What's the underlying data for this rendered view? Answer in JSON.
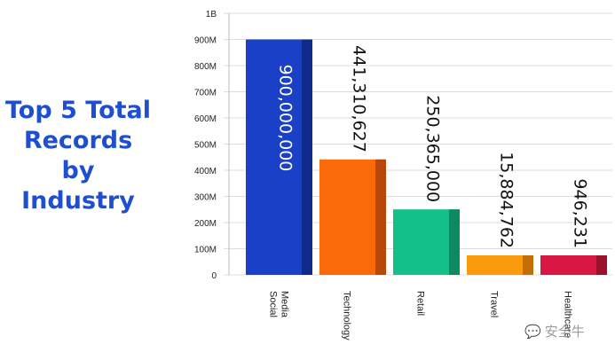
{
  "title_lines": [
    "Top 5 Total",
    "Records",
    "by Industry"
  ],
  "watermark": {
    "icon": "wechat-icon",
    "text": "安全牛"
  },
  "chart_data": {
    "type": "bar",
    "title": "Top 5 Total Records by Industry",
    "categories": [
      "Social Media",
      "Technology",
      "Retail",
      "Travel",
      "Healthcare"
    ],
    "category_lines": [
      [
        "Social",
        "Media"
      ],
      [
        "Technology"
      ],
      [
        "Retail"
      ],
      [
        "Travel"
      ],
      [
        "Healthcare"
      ]
    ],
    "values": [
      900000000,
      441310627,
      250365000,
      15884762,
      946231
    ],
    "value_labels": [
      "900,000,000",
      "441,310,627",
      "250,365,000",
      "15,884,762",
      "946,231"
    ],
    "colors": [
      "#1a40c8",
      "#fa6a0a",
      "#13c08a",
      "#f99b0c",
      "#d81843"
    ],
    "side_colors": [
      "#0e2a8a",
      "#b8480a",
      "#0d8a62",
      "#c26f08",
      "#9a0f2c"
    ],
    "yticks": [
      0,
      100000000,
      200000000,
      300000000,
      400000000,
      500000000,
      600000000,
      700000000,
      800000000,
      900000000,
      1000000000
    ],
    "ytick_labels": [
      "0",
      "100M",
      "200M",
      "300M",
      "400M",
      "500M",
      "600M",
      "700M",
      "800M",
      "900M",
      "1B"
    ],
    "ylim": [
      0,
      1000000000
    ],
    "grid": true,
    "legend": "none",
    "xlabel": "",
    "ylabel": ""
  }
}
